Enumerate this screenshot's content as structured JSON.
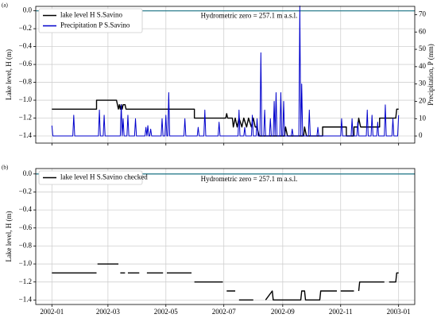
{
  "chart_data": [
    {
      "type": "line",
      "panel_label": "(a)",
      "ylabel": "Lake level, H (m)",
      "y2label": "Precipitation, P (mm)",
      "annotation": "Hydrometric zero = 257.1 m a.s.l.",
      "hline": 0,
      "hline_color": "#2f7f8f",
      "grid": true,
      "legend": "upper left",
      "xlim": [
        -17,
        382
      ],
      "xticks": [
        0,
        59,
        120,
        181,
        243,
        304,
        365
      ],
      "ylim": [
        -1.48,
        0.05
      ],
      "yticks": [
        {
          "value": 0,
          "label": "0.0"
        },
        {
          "value": -0.2,
          "label": "−0.2"
        },
        {
          "value": -0.4,
          "label": "−0.4"
        },
        {
          "value": -0.6,
          "label": "−0.6"
        },
        {
          "value": -0.8,
          "label": "−0.8"
        },
        {
          "value": -1.0,
          "label": "−1.0"
        },
        {
          "value": -1.2,
          "label": "−1.2"
        },
        {
          "value": -1.4,
          "label": "−1.4"
        }
      ],
      "y2lim": [
        -4.1,
        74.8
      ],
      "y2ticks": [
        0,
        10,
        20,
        30,
        40,
        50,
        60,
        70
      ],
      "series": [
        {
          "name": "lake level H S.Savino",
          "color": "#000000",
          "axis": "y",
          "x": [
            0,
            47,
            47,
            68,
            69,
            70,
            71,
            72,
            73,
            74,
            75,
            77,
            78,
            150,
            150,
            183,
            184,
            185,
            190,
            191,
            193,
            195,
            197,
            200,
            202,
            205,
            207,
            210,
            212,
            214,
            216,
            218,
            245,
            246,
            248,
            265,
            266,
            268,
            285,
            285,
            310,
            310,
            318,
            318,
            322,
            323,
            325,
            345,
            345,
            362,
            363,
            365
          ],
          "values": [
            -1.1,
            -1.1,
            -1.0,
            -1.0,
            -1.05,
            -1.1,
            -1.05,
            -1.1,
            -1.05,
            -1.1,
            -1.05,
            -1.05,
            -1.1,
            -1.1,
            -1.2,
            -1.2,
            -1.15,
            -1.2,
            -1.2,
            -1.3,
            -1.2,
            -1.3,
            -1.2,
            -1.3,
            -1.2,
            -1.3,
            -1.2,
            -1.3,
            -1.2,
            -1.3,
            -1.3,
            -1.4,
            -1.4,
            -1.3,
            -1.4,
            -1.4,
            -1.3,
            -1.4,
            -1.4,
            -1.3,
            -1.3,
            -1.4,
            -1.4,
            -1.3,
            -1.3,
            -1.2,
            -1.3,
            -1.3,
            -1.2,
            -1.2,
            -1.1,
            -1.1
          ]
        },
        {
          "name": "Precipitation P S.Savino",
          "color": "#0000cc",
          "axis": "y2",
          "x": [
            0,
            1,
            22,
            23,
            24,
            49,
            50,
            51,
            54,
            55,
            56,
            72,
            73,
            74,
            75,
            76,
            79,
            80,
            81,
            87,
            88,
            89,
            98,
            99,
            100,
            101,
            102,
            103,
            104,
            105,
            115,
            116,
            117,
            119,
            120,
            121,
            122,
            123,
            124,
            139,
            140,
            141,
            153,
            154,
            155,
            160,
            161,
            162,
            175,
            176,
            177,
            196,
            197,
            198,
            202,
            203,
            204,
            210,
            211,
            212,
            215,
            216,
            217,
            219,
            220,
            221,
            223,
            224,
            225,
            229,
            230,
            231,
            233,
            234,
            235,
            236,
            237,
            240,
            241,
            242,
            243,
            244,
            245,
            252,
            253,
            254,
            260,
            261,
            262,
            263,
            264,
            270,
            271,
            272,
            279,
            280,
            281,
            304,
            305,
            306,
            315,
            316,
            317,
            321,
            322,
            323,
            331,
            332,
            333,
            336,
            337,
            338,
            342,
            343,
            344,
            350,
            351,
            352,
            358,
            359,
            360,
            364,
            365
          ],
          "values": [
            6,
            0,
            0,
            12,
            0,
            0,
            15,
            0,
            0,
            12,
            0,
            0,
            18,
            0,
            10,
            0,
            0,
            12,
            0,
            0,
            10,
            0,
            0,
            5,
            0,
            6,
            0,
            0,
            4,
            0,
            0,
            10,
            0,
            0,
            12,
            0,
            0,
            25,
            0,
            0,
            10,
            0,
            0,
            5,
            0,
            0,
            15,
            0,
            0,
            8,
            0,
            0,
            15,
            0,
            0,
            5,
            0,
            0,
            12,
            0,
            0,
            10,
            0,
            0,
            48,
            0,
            0,
            15,
            0,
            0,
            10,
            0,
            0,
            20,
            0,
            25,
            0,
            0,
            25,
            0,
            0,
            20,
            0,
            0,
            4,
            0,
            0,
            75,
            0,
            30,
            0,
            0,
            15,
            0,
            0,
            5,
            0,
            0,
            10,
            0,
            0,
            10,
            0,
            0,
            8,
            0,
            0,
            15,
            0,
            0,
            12,
            0,
            0,
            8,
            0,
            0,
            18,
            0,
            0,
            10,
            0,
            0,
            12
          ]
        }
      ]
    },
    {
      "type": "line",
      "panel_label": "(b)",
      "ylabel": "Lake level, H (m)",
      "annotation": "Hydrometric zero = 257.1 m a.s.l.",
      "hline": 0,
      "hline_color": "#2f7f8f",
      "grid": true,
      "legend": "upper left",
      "xlim": [
        -17,
        382
      ],
      "xticks": [
        {
          "value": 0,
          "label": "2002-01"
        },
        {
          "value": 59,
          "label": "2002-03"
        },
        {
          "value": 120,
          "label": "2002-05"
        },
        {
          "value": 181,
          "label": "2002-07"
        },
        {
          "value": 243,
          "label": "2002-09"
        },
        {
          "value": 304,
          "label": "2002-11"
        },
        {
          "value": 365,
          "label": "2003-01"
        }
      ],
      "ylim": [
        -1.45,
        0.06
      ],
      "yticks": [
        {
          "value": 0,
          "label": "0.0"
        },
        {
          "value": -0.2,
          "label": "−0.2"
        },
        {
          "value": -0.4,
          "label": "−0.4"
        },
        {
          "value": -0.6,
          "label": "−0.6"
        },
        {
          "value": -0.8,
          "label": "−0.8"
        },
        {
          "value": -1.0,
          "label": "−1.0"
        },
        {
          "value": -1.2,
          "label": "−1.2"
        },
        {
          "value": -1.4,
          "label": "−1.4"
        }
      ],
      "series": [
        {
          "name": "lake level H S.Savino checked",
          "color": "#000000",
          "axis": "y",
          "x": [
            0,
            47,
            48,
            48,
            70,
            71,
            72,
            77,
            78,
            80,
            92,
            93,
            100,
            117,
            118,
            121,
            147,
            148,
            150,
            180,
            181,
            184,
            193,
            194,
            197,
            212,
            213,
            225,
            232,
            233,
            262,
            263,
            266,
            267,
            282,
            283,
            300,
            301,
            304,
            318,
            319,
            323,
            324,
            350,
            351,
            355,
            362,
            363,
            365
          ],
          "values": [
            -1.1,
            -1.1,
            null,
            -1.0,
            -1.0,
            null,
            -1.1,
            -1.1,
            null,
            -1.1,
            -1.1,
            null,
            -1.1,
            -1.1,
            null,
            -1.1,
            -1.1,
            null,
            -1.2,
            -1.2,
            null,
            -1.3,
            -1.3,
            null,
            -1.4,
            -1.4,
            null,
            -1.4,
            -1.3,
            -1.4,
            -1.4,
            -1.3,
            -1.3,
            -1.4,
            -1.4,
            -1.3,
            -1.3,
            null,
            -1.3,
            -1.3,
            null,
            -1.3,
            -1.2,
            -1.2,
            null,
            -1.2,
            -1.2,
            -1.1,
            -1.1
          ]
        }
      ]
    }
  ]
}
